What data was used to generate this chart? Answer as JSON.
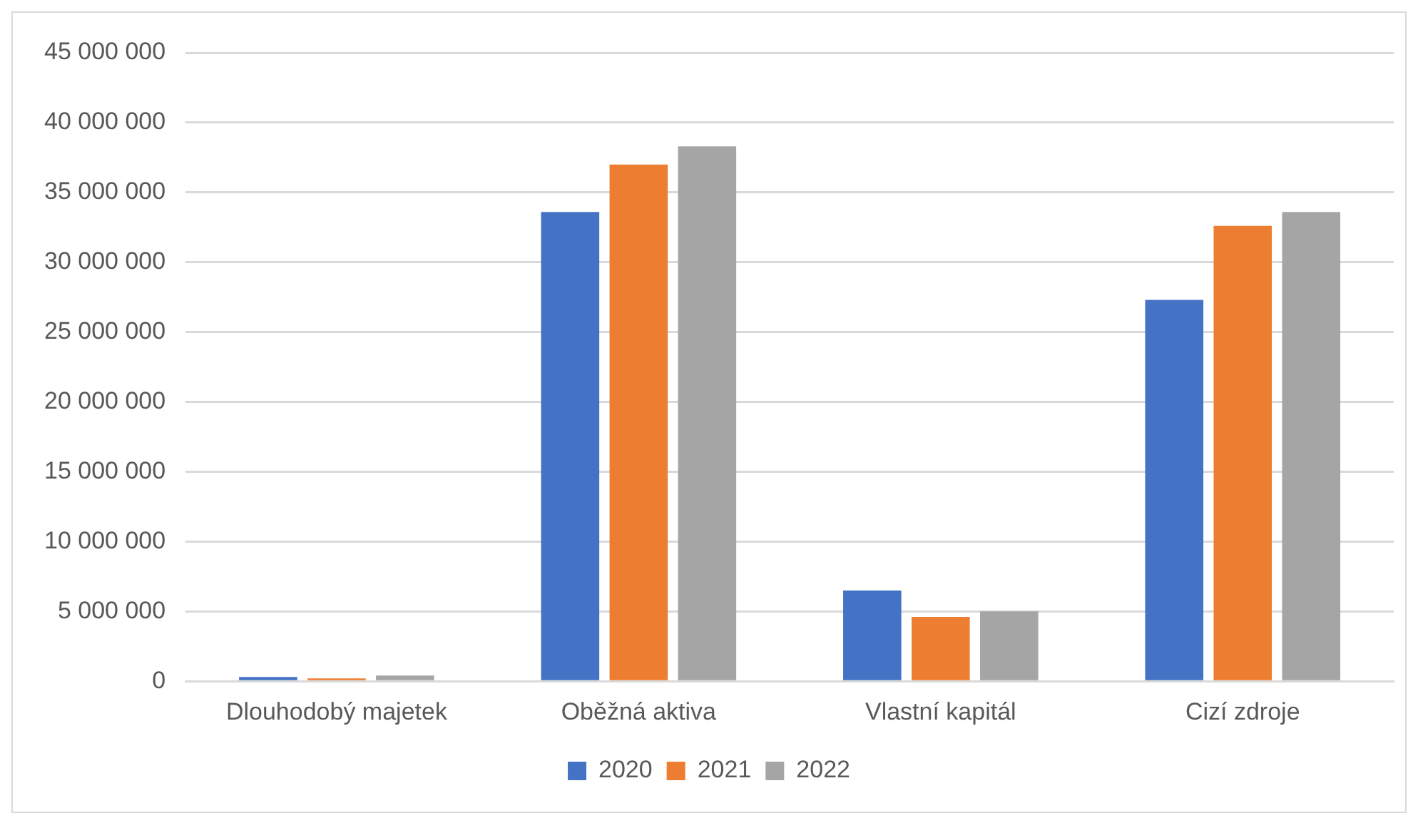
{
  "chart_data": {
    "type": "bar",
    "categories": [
      "Dlouhodobý majetek",
      "Oběžná aktiva",
      "Vlastní kapitál",
      "Cizí zdroje"
    ],
    "series": [
      {
        "name": "2020",
        "color": "#4472c4",
        "values": [
          300000,
          33600000,
          6500000,
          27300000
        ]
      },
      {
        "name": "2021",
        "color": "#ed7d31",
        "values": [
          200000,
          37000000,
          4600000,
          32600000
        ]
      },
      {
        "name": "2022",
        "color": "#a5a5a5",
        "values": [
          400000,
          38300000,
          5000000,
          33600000
        ]
      }
    ],
    "ylim": [
      0,
      45000000
    ],
    "yticks": [
      {
        "value": 0,
        "label": "0"
      },
      {
        "value": 5000000,
        "label": "5 000 000"
      },
      {
        "value": 10000000,
        "label": "10 000 000"
      },
      {
        "value": 15000000,
        "label": "15 000 000"
      },
      {
        "value": 20000000,
        "label": "20 000 000"
      },
      {
        "value": 25000000,
        "label": "25 000 000"
      },
      {
        "value": 30000000,
        "label": "30 000 000"
      },
      {
        "value": 35000000,
        "label": "35 000 000"
      },
      {
        "value": 40000000,
        "label": "40 000 000"
      },
      {
        "value": 45000000,
        "label": "45 000 000"
      }
    ],
    "grid": "y",
    "legend": "bottom"
  }
}
